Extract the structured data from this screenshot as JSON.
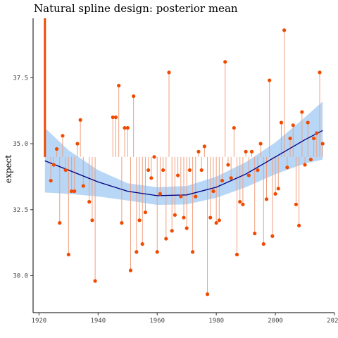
{
  "chart_data": {
    "type": "scatter",
    "title": "Natural spline design: posterior mean",
    "xlabel": "",
    "ylabel": "expect",
    "xlim": [
      1918,
      2020
    ],
    "ylim": [
      28.6,
      39.75
    ],
    "xticks": [
      1920,
      1940,
      1960,
      1980,
      2000,
      2020
    ],
    "yticks": [
      30.0,
      32.5,
      35.0,
      37.5
    ],
    "ytick_labels": [
      "30.0",
      "32.5",
      "35.0",
      "37.5"
    ],
    "baseline": 34.5,
    "colors": {
      "points": "#f04a00",
      "stems": "#f0a080",
      "mean_line": "#00007f",
      "band": "#b8d6f6",
      "highlight_stem": "#f04a00"
    },
    "highlight_stem": {
      "x": 1922,
      "y_top": 39.75,
      "y_bottom": 34.5
    },
    "points": [
      {
        "x": 1924,
        "y": 33.6
      },
      {
        "x": 1925,
        "y": 34.2
      },
      {
        "x": 1926,
        "y": 34.8
      },
      {
        "x": 1927,
        "y": 32.0
      },
      {
        "x": 1928,
        "y": 35.3
      },
      {
        "x": 1929,
        "y": 34.0
      },
      {
        "x": 1930,
        "y": 30.8
      },
      {
        "x": 1931,
        "y": 33.2
      },
      {
        "x": 1932,
        "y": 33.2
      },
      {
        "x": 1933,
        "y": 35.0
      },
      {
        "x": 1934,
        "y": 35.9
      },
      {
        "x": 1935,
        "y": 33.4
      },
      {
        "x": 1937,
        "y": 32.8
      },
      {
        "x": 1938,
        "y": 32.1
      },
      {
        "x": 1939,
        "y": 29.8
      },
      {
        "x": 1945,
        "y": 36.0
      },
      {
        "x": 1946,
        "y": 36.0
      },
      {
        "x": 1947,
        "y": 37.2
      },
      {
        "x": 1948,
        "y": 32.0
      },
      {
        "x": 1949,
        "y": 35.6
      },
      {
        "x": 1950,
        "y": 35.6
      },
      {
        "x": 1951,
        "y": 30.2
      },
      {
        "x": 1952,
        "y": 36.8
      },
      {
        "x": 1953,
        "y": 30.9
      },
      {
        "x": 1954,
        "y": 32.1
      },
      {
        "x": 1955,
        "y": 31.2
      },
      {
        "x": 1956,
        "y": 32.4
      },
      {
        "x": 1957,
        "y": 34.0
      },
      {
        "x": 1958,
        "y": 33.7
      },
      {
        "x": 1959,
        "y": 34.5
      },
      {
        "x": 1960,
        "y": 30.9
      },
      {
        "x": 1961,
        "y": 33.1
      },
      {
        "x": 1962,
        "y": 34.0
      },
      {
        "x": 1963,
        "y": 31.4
      },
      {
        "x": 1964,
        "y": 37.7
      },
      {
        "x": 1965,
        "y": 31.7
      },
      {
        "x": 1966,
        "y": 32.3
      },
      {
        "x": 1967,
        "y": 33.8
      },
      {
        "x": 1968,
        "y": 33.0
      },
      {
        "x": 1969,
        "y": 32.2
      },
      {
        "x": 1970,
        "y": 31.8
      },
      {
        "x": 1971,
        "y": 34.0
      },
      {
        "x": 1972,
        "y": 30.9
      },
      {
        "x": 1973,
        "y": 33.0
      },
      {
        "x": 1974,
        "y": 34.7
      },
      {
        "x": 1975,
        "y": 34.0
      },
      {
        "x": 1976,
        "y": 34.9
      },
      {
        "x": 1977,
        "y": 29.3
      },
      {
        "x": 1978,
        "y": 32.2
      },
      {
        "x": 1979,
        "y": 33.2
      },
      {
        "x": 1980,
        "y": 32.0
      },
      {
        "x": 1981,
        "y": 32.1
      },
      {
        "x": 1982,
        "y": 33.6
      },
      {
        "x": 1983,
        "y": 38.1
      },
      {
        "x": 1984,
        "y": 34.2
      },
      {
        "x": 1985,
        "y": 33.7
      },
      {
        "x": 1986,
        "y": 35.6
      },
      {
        "x": 1987,
        "y": 30.8
      },
      {
        "x": 1988,
        "y": 32.8
      },
      {
        "x": 1989,
        "y": 32.7
      },
      {
        "x": 1990,
        "y": 34.7
      },
      {
        "x": 1991,
        "y": 33.8
      },
      {
        "x": 1992,
        "y": 34.7
      },
      {
        "x": 1993,
        "y": 31.6
      },
      {
        "x": 1994,
        "y": 34.0
      },
      {
        "x": 1995,
        "y": 35.0
      },
      {
        "x": 1996,
        "y": 31.2
      },
      {
        "x": 1997,
        "y": 32.9
      },
      {
        "x": 1998,
        "y": 37.4
      },
      {
        "x": 1999,
        "y": 31.5
      },
      {
        "x": 2000,
        "y": 33.1
      },
      {
        "x": 2001,
        "y": 33.3
      },
      {
        "x": 2002,
        "y": 35.8
      },
      {
        "x": 2003,
        "y": 39.3
      },
      {
        "x": 2004,
        "y": 34.1
      },
      {
        "x": 2005,
        "y": 35.2
      },
      {
        "x": 2006,
        "y": 35.7
      },
      {
        "x": 2007,
        "y": 32.7
      },
      {
        "x": 2008,
        "y": 31.9
      },
      {
        "x": 2009,
        "y": 36.2
      },
      {
        "x": 2010,
        "y": 34.2
      },
      {
        "x": 2011,
        "y": 35.8
      },
      {
        "x": 2012,
        "y": 34.4
      },
      {
        "x": 2013,
        "y": 35.2
      },
      {
        "x": 2014,
        "y": 35.4
      },
      {
        "x": 2015,
        "y": 37.7
      },
      {
        "x": 2016,
        "y": 35.0
      }
    ],
    "mean_curve": [
      {
        "x": 1922,
        "y": 34.35
      },
      {
        "x": 1930,
        "y": 34.0
      },
      {
        "x": 1940,
        "y": 33.55
      },
      {
        "x": 1950,
        "y": 33.2
      },
      {
        "x": 1960,
        "y": 33.03
      },
      {
        "x": 1970,
        "y": 33.06
      },
      {
        "x": 1980,
        "y": 33.35
      },
      {
        "x": 1990,
        "y": 33.85
      },
      {
        "x": 2000,
        "y": 34.5
      },
      {
        "x": 2010,
        "y": 35.15
      },
      {
        "x": 2016,
        "y": 35.5
      }
    ],
    "band_upper": [
      {
        "x": 1922,
        "y": 35.6
      },
      {
        "x": 1930,
        "y": 34.75
      },
      {
        "x": 1940,
        "y": 34.0
      },
      {
        "x": 1950,
        "y": 33.5
      },
      {
        "x": 1960,
        "y": 33.35
      },
      {
        "x": 1970,
        "y": 33.4
      },
      {
        "x": 1980,
        "y": 33.75
      },
      {
        "x": 1990,
        "y": 34.3
      },
      {
        "x": 2000,
        "y": 35.05
      },
      {
        "x": 2010,
        "y": 36.0
      },
      {
        "x": 2016,
        "y": 36.6
      }
    ],
    "band_lower": [
      {
        "x": 1922,
        "y": 33.15
      },
      {
        "x": 1930,
        "y": 33.1
      },
      {
        "x": 1940,
        "y": 33.0
      },
      {
        "x": 1950,
        "y": 32.85
      },
      {
        "x": 1960,
        "y": 32.68
      },
      {
        "x": 1970,
        "y": 32.7
      },
      {
        "x": 1980,
        "y": 32.95
      },
      {
        "x": 1990,
        "y": 33.35
      },
      {
        "x": 2000,
        "y": 33.85
      },
      {
        "x": 2010,
        "y": 34.25
      },
      {
        "x": 2016,
        "y": 34.4
      }
    ],
    "grid": false,
    "legend": "none"
  }
}
